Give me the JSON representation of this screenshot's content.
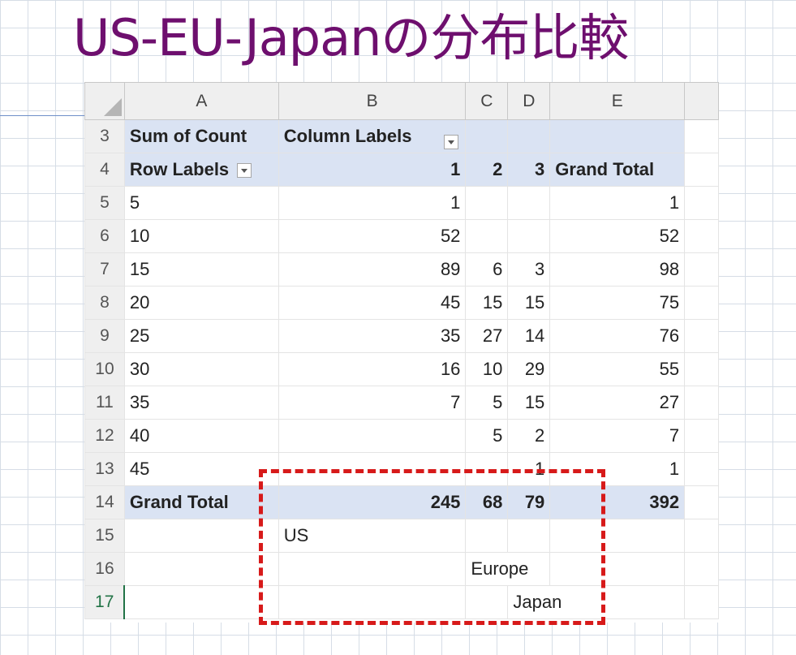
{
  "title": "US-EU-Japanの分布比較",
  "columns": [
    "A",
    "B",
    "C",
    "D",
    "E"
  ],
  "pivot": {
    "sum_label": "Sum of Count",
    "column_labels": "Column Labels",
    "row_labels": "Row Labels",
    "col_headers": [
      "1",
      "2",
      "3",
      "Grand Total"
    ],
    "rows": [
      {
        "row": "5",
        "label": "5",
        "c1": "1",
        "c2": "",
        "c3": "",
        "total": "1"
      },
      {
        "row": "6",
        "label": "10",
        "c1": "52",
        "c2": "",
        "c3": "",
        "total": "52"
      },
      {
        "row": "7",
        "label": "15",
        "c1": "89",
        "c2": "6",
        "c3": "3",
        "total": "98"
      },
      {
        "row": "8",
        "label": "20",
        "c1": "45",
        "c2": "15",
        "c3": "15",
        "total": "75"
      },
      {
        "row": "9",
        "label": "25",
        "c1": "35",
        "c2": "27",
        "c3": "14",
        "total": "76"
      },
      {
        "row": "10",
        "label": "30",
        "c1": "16",
        "c2": "10",
        "c3": "29",
        "total": "55"
      },
      {
        "row": "11",
        "label": "35",
        "c1": "7",
        "c2": "5",
        "c3": "15",
        "total": "27"
      },
      {
        "row": "12",
        "label": "40",
        "c1": "",
        "c2": "5",
        "c3": "2",
        "total": "7"
      },
      {
        "row": "13",
        "label": "45",
        "c1": "",
        "c2": "",
        "c3": "1",
        "total": "1"
      }
    ],
    "grand_total": {
      "row": "14",
      "label": "Grand Total",
      "c1": "245",
      "c2": "68",
      "c3": "79",
      "total": "392"
    }
  },
  "annotations": {
    "row_15": {
      "row": "15",
      "text": "US"
    },
    "row_16": {
      "row": "16",
      "text": "Europe"
    },
    "row_17": {
      "row": "17",
      "text": "Japan"
    }
  },
  "header_rows": [
    "3",
    "4"
  ],
  "colors": {
    "title": "#6e0f6e",
    "pivot_header": "#dae3f3",
    "callout": "#d71a1a",
    "active_row": "#217346"
  }
}
